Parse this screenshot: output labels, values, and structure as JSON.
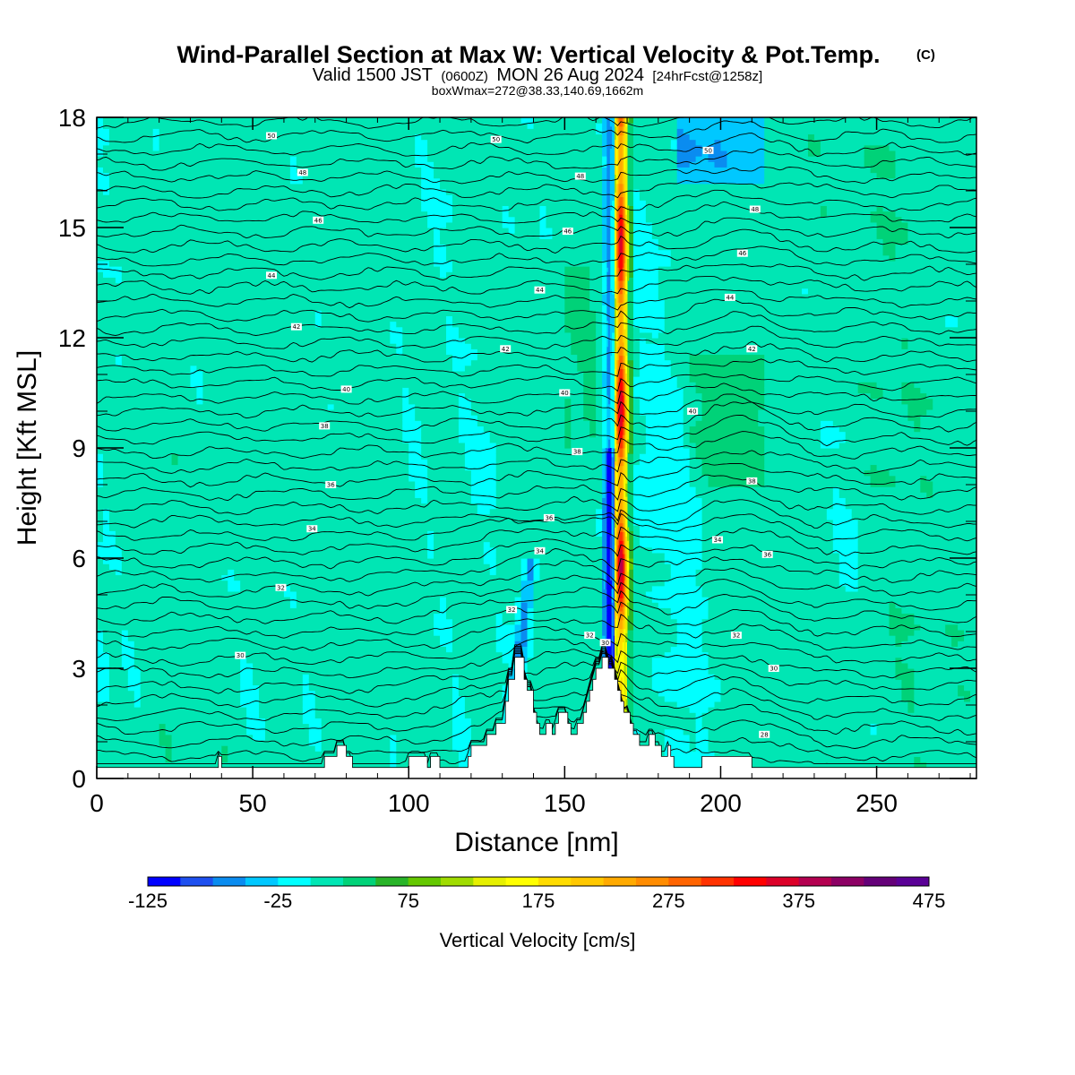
{
  "chart_data": {
    "type": "heatmap",
    "title": "Wind-Parallel Section at Max W: Vertical Velocity & Pot.Temp.",
    "title_mark": "(C)",
    "subtitle": {
      "valid_prefix": "Valid 1500 JST",
      "utc": "(0600Z)",
      "date": "MON 26 Aug 2024",
      "forecast": "[24hrFcst@1258z]"
    },
    "box_info": "boxWmax=272@38.33,140.69,1662m",
    "xlabel": "Distance [nm]",
    "ylabel": "Height [Kft MSL]",
    "xlim": [
      0,
      282
    ],
    "ylim": [
      0,
      18
    ],
    "x_ticks": [
      0,
      50,
      100,
      150,
      200,
      250
    ],
    "y_ticks": [
      0,
      3,
      6,
      9,
      12,
      15,
      18
    ],
    "colorbar": {
      "title": "Vertical Velocity [cm/s]",
      "range": [
        -125,
        475
      ],
      "step": 25,
      "tick_labels": [
        -125,
        -25,
        75,
        175,
        275,
        375,
        475
      ],
      "colors": [
        "#0000ff",
        "#1e50f0",
        "#0a8cf0",
        "#00c8ff",
        "#00ffff",
        "#00e6b4",
        "#00d278",
        "#28b428",
        "#64c800",
        "#a0dc00",
        "#e6f000",
        "#ffff00",
        "#ffdc00",
        "#ffc800",
        "#ffaa00",
        "#ff8c00",
        "#ff6400",
        "#ff3200",
        "#ff0000",
        "#dc0028",
        "#b40050",
        "#8c0064",
        "#640078",
        "#5a0096"
      ]
    },
    "jet_x": 168,
    "terrain": [
      [
        0,
        0.3
      ],
      [
        39,
        0.3
      ],
      [
        39,
        0.6
      ],
      [
        40,
        0.6
      ],
      [
        40,
        0.3
      ],
      [
        73,
        0.3
      ],
      [
        73,
        0.6
      ],
      [
        77,
        0.6
      ],
      [
        77,
        0.9
      ],
      [
        80,
        0.9
      ],
      [
        80,
        0.6
      ],
      [
        82,
        0.6
      ],
      [
        82,
        0.3
      ],
      [
        100,
        0.3
      ],
      [
        100,
        0.6
      ],
      [
        106,
        0.6
      ],
      [
        106,
        0.3
      ],
      [
        107,
        0.3
      ],
      [
        107,
        0.6
      ],
      [
        110,
        0.6
      ],
      [
        110,
        0.3
      ],
      [
        119,
        0.3
      ],
      [
        119,
        0.6
      ],
      [
        120,
        0.6
      ],
      [
        120,
        0.9
      ],
      [
        125,
        0.9
      ],
      [
        125,
        1.2
      ],
      [
        128,
        1.2
      ],
      [
        128,
        1.5
      ],
      [
        131,
        1.5
      ],
      [
        131,
        2.1
      ],
      [
        132,
        2.1
      ],
      [
        132,
        2.7
      ],
      [
        134,
        2.7
      ],
      [
        134,
        3.3
      ],
      [
        137,
        3.3
      ],
      [
        137,
        2.7
      ],
      [
        138,
        2.7
      ],
      [
        138,
        2.4
      ],
      [
        140,
        2.4
      ],
      [
        140,
        1.8
      ],
      [
        141,
        1.8
      ],
      [
        141,
        1.5
      ],
      [
        142,
        1.5
      ],
      [
        142,
        1.2
      ],
      [
        144,
        1.2
      ],
      [
        144,
        1.5
      ],
      [
        146,
        1.5
      ],
      [
        146,
        1.2
      ],
      [
        147,
        1.2
      ],
      [
        147,
        1.5
      ],
      [
        148,
        1.5
      ],
      [
        148,
        1.8
      ],
      [
        151,
        1.8
      ],
      [
        151,
        1.5
      ],
      [
        152,
        1.5
      ],
      [
        152,
        1.2
      ],
      [
        154,
        1.2
      ],
      [
        154,
        1.5
      ],
      [
        156,
        1.5
      ],
      [
        156,
        1.8
      ],
      [
        157,
        1.8
      ],
      [
        157,
        2.1
      ],
      [
        158,
        2.1
      ],
      [
        158,
        2.4
      ],
      [
        159,
        2.4
      ],
      [
        159,
        2.7
      ],
      [
        160,
        2.7
      ],
      [
        160,
        3.0
      ],
      [
        162,
        3.0
      ],
      [
        162,
        3.3
      ],
      [
        164,
        3.3
      ],
      [
        164,
        3.0
      ],
      [
        166,
        3.0
      ],
      [
        166,
        2.7
      ],
      [
        167,
        2.7
      ],
      [
        167,
        2.4
      ],
      [
        168,
        2.4
      ],
      [
        168,
        2.1
      ],
      [
        169,
        2.1
      ],
      [
        169,
        1.8
      ],
      [
        171,
        1.8
      ],
      [
        171,
        1.5
      ],
      [
        172,
        1.5
      ],
      [
        172,
        1.2
      ],
      [
        174,
        1.2
      ],
      [
        174,
        0.9
      ],
      [
        177,
        0.9
      ],
      [
        177,
        1.2
      ],
      [
        179,
        1.2
      ],
      [
        179,
        0.9
      ],
      [
        181,
        0.9
      ],
      [
        181,
        0.6
      ],
      [
        183,
        0.6
      ],
      [
        183,
        0.9
      ],
      [
        184,
        0.9
      ],
      [
        184,
        0.6
      ],
      [
        185,
        0.6
      ],
      [
        185,
        0.3
      ],
      [
        194,
        0.3
      ],
      [
        194,
        0.6
      ],
      [
        210,
        0.6
      ],
      [
        210,
        0.3
      ],
      [
        282,
        0.3
      ]
    ],
    "theta_contours": [
      {
        "level": "30",
        "label_x": 46,
        "label_y": 3.35
      },
      {
        "level": "32",
        "label_x": 59,
        "label_y": 5.2
      },
      {
        "level": "34",
        "label_x": 69,
        "label_y": 6.8
      },
      {
        "level": "36",
        "label_x": 75,
        "label_y": 8.0
      },
      {
        "level": "38",
        "label_x": 73,
        "label_y": 9.6
      },
      {
        "level": "40",
        "label_x": 80,
        "label_y": 10.6
      },
      {
        "level": "42",
        "label_x": 64,
        "label_y": 12.3
      },
      {
        "level": "44",
        "label_x": 56,
        "label_y": 13.7
      },
      {
        "level": "46",
        "label_x": 71,
        "label_y": 15.2
      },
      {
        "level": "48",
        "label_x": 66,
        "label_y": 16.5
      },
      {
        "level": "50",
        "label_x": 56,
        "label_y": 17.5
      }
    ],
    "extra_contour_labels": [
      {
        "level": "32",
        "x": 133,
        "y": 4.6
      },
      {
        "level": "34",
        "x": 142,
        "y": 6.2
      },
      {
        "level": "36",
        "x": 145,
        "y": 7.1
      },
      {
        "level": "38",
        "x": 154,
        "y": 8.9
      },
      {
        "level": "40",
        "x": 150,
        "y": 10.5
      },
      {
        "level": "42",
        "x": 131,
        "y": 11.7
      },
      {
        "level": "44",
        "x": 142,
        "y": 13.3
      },
      {
        "level": "46",
        "x": 151,
        "y": 14.9
      },
      {
        "level": "48",
        "x": 155,
        "y": 16.4
      },
      {
        "level": "50",
        "x": 128,
        "y": 17.4
      },
      {
        "level": "30",
        "x": 163,
        "y": 3.7
      },
      {
        "level": "32",
        "x": 158,
        "y": 3.9
      },
      {
        "level": "28",
        "x": 214,
        "y": 1.2
      },
      {
        "level": "30",
        "x": 217,
        "y": 3.0
      },
      {
        "level": "32",
        "x": 205,
        "y": 3.9
      },
      {
        "level": "34",
        "x": 199,
        "y": 6.5
      },
      {
        "level": "36",
        "x": 215,
        "y": 6.1
      },
      {
        "level": "38",
        "x": 210,
        "y": 8.1
      },
      {
        "level": "40",
        "x": 191,
        "y": 10.0
      },
      {
        "level": "42",
        "x": 210,
        "y": 11.7
      },
      {
        "level": "44",
        "x": 203,
        "y": 13.1
      },
      {
        "level": "46",
        "x": 207,
        "y": 14.3
      },
      {
        "level": "48",
        "x": 211,
        "y": 15.5
      },
      {
        "level": "50",
        "x": 196,
        "y": 17.1
      }
    ]
  }
}
